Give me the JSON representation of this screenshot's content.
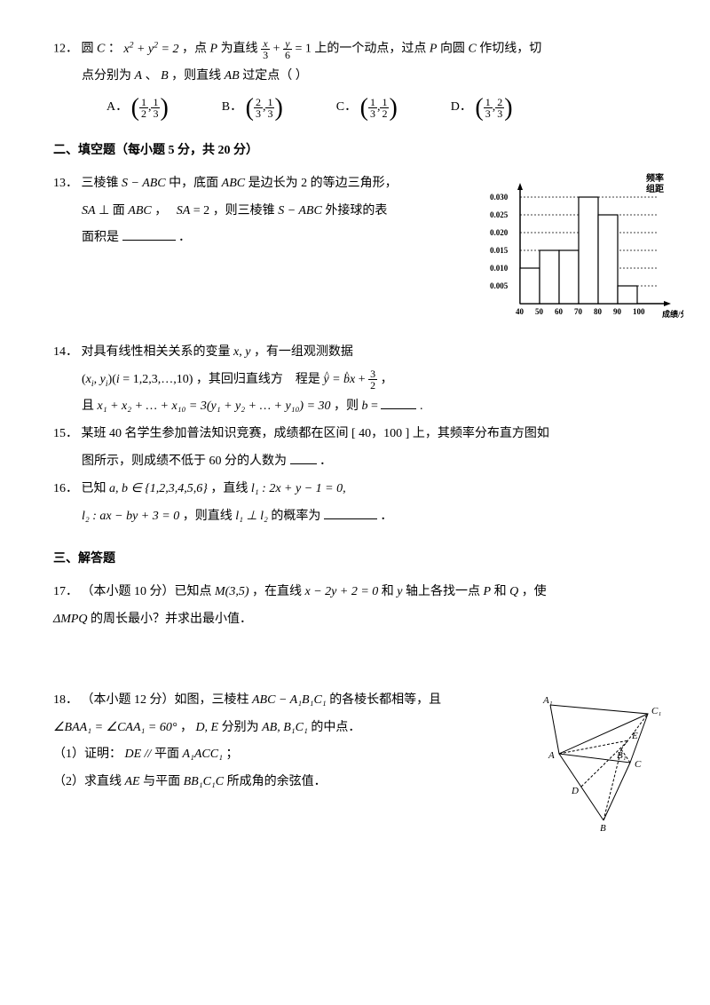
{
  "q12": {
    "num": "12．",
    "text1": "圆",
    "C": "C",
    "colon": "： ",
    "eq1_a": "x",
    "eq1_b": "y",
    "eq1_rhs": " = 2",
    "text2": "，点",
    "P": "P",
    "text3": "为直线",
    "frac1_num": "x",
    "frac1_den": "3",
    "plus": " + ",
    "frac2_num": "y",
    "frac2_den": "6",
    "eq2_rhs": " = 1",
    "text4": "上的一个动点，过点",
    "text5": "向圆",
    "text6": "作切线，切",
    "line2a": "点分别为",
    "A": "A",
    "B": "B",
    "line2b": "、",
    "line2c": "，则直线",
    "AB": "AB",
    "line2d": "过定点（   ）",
    "optA": "A．",
    "optB": "B．",
    "optC": "C．",
    "optD": "D．",
    "a1": "1",
    "a2": "2",
    "a3": "1",
    "a4": "3",
    "b1": "2",
    "b2": "3",
    "b3": "1",
    "b4": "3",
    "c1": "1",
    "c2": "3",
    "c3": "1",
    "c4": "2",
    "d1": "1",
    "d2": "3",
    "d3": "2",
    "d4": "3"
  },
  "sec2": "二、填空题（每小题 5 分，共 20 分）",
  "q13": {
    "num": "13．",
    "t1": "三棱锥",
    "s1": "S − ABC",
    "t2": "中，底面",
    "s2": "ABC",
    "t3": "是边长为",
    "v2": "2",
    "t4": "的等边三角形，",
    "l2a": "SA",
    "l2b": "⊥",
    "l2c": "面",
    "l2d": "ABC",
    "l2e": "，　",
    "l2f": "SA",
    "l2g": " = 2",
    "l2h": "，则三棱锥",
    "l2i": "S − ABC",
    "l2j": "外接球的表",
    "l3a": "面积是",
    "l3b": "．"
  },
  "q14": {
    "num": "14．",
    "t1": "对具有线性相关关系的变量",
    "xy": "x, y",
    "t2": "，有一组观测数据",
    "l2a": "(x",
    "l2sub": "i",
    "l2b": ", y",
    "l2c": ")(i = 1,2,3,…,10)",
    "l2d": "，其回归直线方　程是",
    "yhat": "y",
    "eq": " = ",
    "bhat": "b",
    "x": "x",
    "plus": " + ",
    "f_num": "3",
    "f_den": "2",
    "l2e": "，",
    "l3a": "且",
    "sum1": "x₁ + x₂ + … + x₁₀ = 3(y₁ + y₂ + … + y₁₀) = 30",
    "l3b": "，则",
    "bv": "b",
    "l3c": " = ",
    "l3d": "."
  },
  "q15": {
    "num": "15．",
    "t1": "某班 40 名学生参加普法知识竞赛，成绩都在区间",
    "int": "[ 40，100 ]",
    "t2": "上，其频率分布直方图如",
    "l2": "图所示，则成绩不低于 60 分的人数为",
    "l2b": "．"
  },
  "q16": {
    "num": "16．",
    "t1": "已知",
    "set": "a, b ∈ {1,2,3,4,5,6}",
    "t2": "，直线",
    "l1": "l₁ : 2x + y − 1 = 0,",
    "l2a": "l₂ : ax − by + 3 = 0",
    "l2b": "，则直线",
    "perp": "l₁ ⊥ l₂",
    "l2c": "的概率为",
    "l2d": "．"
  },
  "sec3": "三、解答题",
  "q17": {
    "num": "17．",
    "t1": "（本小题 10 分）已知点",
    "M": "M(3,5)",
    "t2": "，在直线",
    "line": "x − 2y + 2 = 0",
    "t3": "和",
    "y": "y",
    "t4": "轴上各找一点",
    "P": "P",
    "t5": "和",
    "Q": "Q",
    "t6": "，使",
    "l2a": "ΔMPQ",
    "l2b": "的周长最小？并求出最小值．"
  },
  "q18": {
    "num": "18．",
    "t1": "（本小题 12 分）如图，三棱柱",
    "prism": "ABC − A₁B₁C₁",
    "t2": "的各棱长都相等，且",
    "l2a": "∠BAA₁ = ∠CAA₁ = 60°",
    "l2b": "，",
    "DE": "D, E",
    "l2c": "分别为",
    "mid": "AB, B₁C₁",
    "l2d": "的中点．",
    "p1a": "（1）证明：",
    "p1b": "DE // ",
    "p1c": "平面",
    "p1d": "A₁ACC₁",
    "p1e": "；",
    "p2a": "（2）求直线",
    "AE": "AE",
    "p2b": "与平面",
    "pl": "BB₁C₁C",
    "p2c": "所成角的余弦值．"
  },
  "histogram": {
    "ylabel1": "频率",
    "ylabel2": "组距",
    "yticks": [
      "0.030",
      "0.025",
      "0.020",
      "0.015",
      "0.010",
      "0.005"
    ],
    "bars": [
      {
        "x": 40,
        "h": 0.01
      },
      {
        "x": 50,
        "h": 0.015
      },
      {
        "x": 60,
        "h": 0.015
      },
      {
        "x": 70,
        "h": 0.03
      },
      {
        "x": 80,
        "h": 0.025
      },
      {
        "x": 90,
        "h": 0.005
      }
    ],
    "xticks": [
      "40",
      "50",
      "60",
      "70",
      "80",
      "90",
      "100"
    ],
    "xlabel": "成绩/分",
    "axis_color": "#000",
    "grid_color": "#000",
    "bar_fill": "#ffffff",
    "bar_stroke": "#000"
  },
  "geom_labels": {
    "A1": "A₁",
    "C1": "C₁",
    "E": "E",
    "B1": "B₁",
    "A": "A",
    "C": "C",
    "D": "D",
    "B": "B"
  }
}
